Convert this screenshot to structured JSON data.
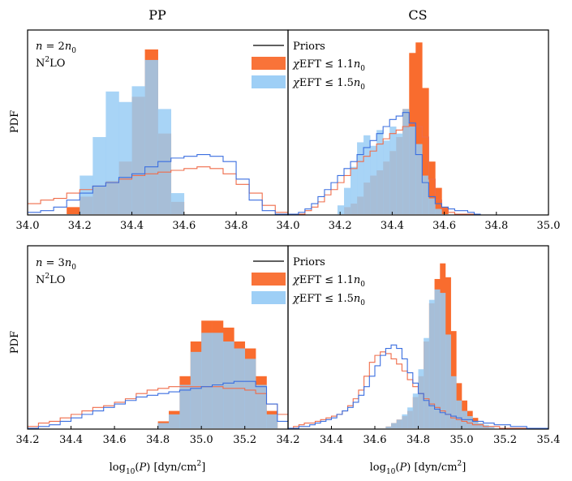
{
  "figure": {
    "column_titles": [
      "PP",
      "CS"
    ],
    "ylabel": "PDF",
    "xlabel": "log10(P) [dyn/cm2]"
  },
  "rows": [
    {
      "density": "n = 2n0",
      "order": "N2LO"
    },
    {
      "density": "n = 3n0",
      "order": "N2LO"
    }
  ],
  "legend": {
    "items": [
      {
        "label": "Priors",
        "style": "line",
        "color": "#000000"
      },
      {
        "label": "χEFT ≤ 1.1n0",
        "style": "patch",
        "color": "#f96c2e"
      },
      {
        "label": "χEFT ≤ 1.5n0",
        "style": "patch",
        "color": "#99ccf5"
      }
    ]
  },
  "colors": {
    "chiEFT_1p1_fill": "#f96c2e",
    "chiEFT_1p1_line": "#ef6c4a",
    "chiEFT_1p5_fill": "#99ccf5",
    "chiEFT_1p5_line": "#3b6fe0"
  },
  "chart_data": [
    {
      "type": "histogram",
      "title": "PP",
      "row_label": "n = 2n0",
      "xlim": [
        34.0,
        34.999
      ],
      "ylim": [
        0,
        1.0
      ],
      "xticks": [
        34.0,
        34.2,
        34.4,
        34.6,
        34.8
      ],
      "xticklabels": [
        "34.0",
        "34.2",
        "34.4",
        "34.6",
        "34.8"
      ],
      "bin_start": 34.0,
      "bin_width": 0.05,
      "series": [
        {
          "name": "χEFT ≤ 1.1n0",
          "kind": "filled",
          "color": "#f96c2e",
          "values": [
            0,
            0,
            0,
            0.04,
            0.1,
            0.16,
            0.19,
            0.3,
            0.67,
            0.94,
            0.46,
            0.07,
            0,
            0,
            0,
            0,
            0,
            0,
            0,
            0
          ]
        },
        {
          "name": "χEFT ≤ 1.5n0",
          "kind": "filled",
          "color": "#99ccf5",
          "values": [
            0,
            0,
            0,
            0,
            0.22,
            0.44,
            0.7,
            0.64,
            0.73,
            0.88,
            0.6,
            0.12,
            0,
            0,
            0,
            0,
            0,
            0,
            0,
            0
          ]
        },
        {
          "name": "Prior (1.1n0)",
          "kind": "step",
          "color": "#ef6c4a",
          "values": [
            0.06,
            0.08,
            0.09,
            0.12,
            0.14,
            0.16,
            0.18,
            0.2,
            0.22,
            0.23,
            0.24,
            0.25,
            0.26,
            0.27,
            0.26,
            0.23,
            0.17,
            0.12,
            0.05,
            0.01
          ]
        },
        {
          "name": "Prior (1.5n0)",
          "kind": "step",
          "color": "#3b6fe0",
          "values": [
            0.01,
            0.02,
            0.04,
            0.08,
            0.12,
            0.16,
            0.18,
            0.21,
            0.23,
            0.27,
            0.3,
            0.32,
            0.33,
            0.34,
            0.33,
            0.3,
            0.2,
            0.08,
            0.02,
            0
          ]
        }
      ]
    },
    {
      "type": "histogram",
      "title": "CS",
      "row_label": "n = 2n0",
      "xlim": [
        34.0,
        35.0
      ],
      "ylim": [
        0,
        1.0
      ],
      "xticks": [
        34.0,
        34.2,
        34.4,
        34.6,
        34.8,
        35.0
      ],
      "xticklabels": [
        "34.0",
        "34.2",
        "34.4",
        "34.6",
        "34.8",
        "35.0"
      ],
      "bin_start": 33.99,
      "bin_width": 0.025,
      "series": [
        {
          "name": "χEFT ≤ 1.1n0",
          "kind": "filled",
          "color": "#f96c2e",
          "values": [
            0,
            0,
            0,
            0,
            0,
            0,
            0,
            0,
            0,
            0.04,
            0.06,
            0.1,
            0.18,
            0.22,
            0.25,
            0.3,
            0.36,
            0.44,
            0.6,
            0.92,
            0.98,
            0.72,
            0.3,
            0.15,
            0.04,
            0,
            0,
            0,
            0,
            0
          ]
        },
        {
          "name": "χEFT ≤ 1.5n0",
          "kind": "filled",
          "color": "#99ccf5",
          "values": [
            0,
            0,
            0,
            0,
            0,
            0,
            0,
            0,
            0.05,
            0.15,
            0.27,
            0.41,
            0.45,
            0.39,
            0.48,
            0.42,
            0.5,
            0.46,
            0.6,
            0.5,
            0.4,
            0.22,
            0.09,
            0.03,
            0,
            0,
            0,
            0,
            0,
            0
          ]
        },
        {
          "name": "Prior (1.1n0)",
          "kind": "step",
          "color": "#ef6c4a",
          "values": [
            0,
            0,
            0,
            0.02,
            0.04,
            0.07,
            0.11,
            0.14,
            0.18,
            0.22,
            0.26,
            0.3,
            0.33,
            0.36,
            0.4,
            0.43,
            0.46,
            0.48,
            0.5,
            0.52,
            0.5,
            0.44,
            0.2,
            0.08,
            0.03,
            0.01,
            0,
            0,
            0,
            0
          ]
        },
        {
          "name": "Prior (1.5n0)",
          "kind": "step",
          "color": "#3b6fe0",
          "values": [
            0,
            0,
            0.01,
            0.03,
            0.06,
            0.1,
            0.14,
            0.18,
            0.22,
            0.26,
            0.3,
            0.34,
            0.38,
            0.42,
            0.46,
            0.5,
            0.54,
            0.56,
            0.58,
            0.52,
            0.34,
            0.18,
            0.1,
            0.06,
            0.04,
            0.03,
            0.02,
            0.02,
            0.01,
            0
          ]
        }
      ]
    },
    {
      "type": "histogram",
      "title": "PP",
      "row_label": "n = 3n0",
      "xlim": [
        34.2,
        35.399
      ],
      "ylim": [
        0,
        1.0
      ],
      "xticks": [
        34.2,
        34.4,
        34.6,
        34.8,
        35.0,
        35.2
      ],
      "xticklabels": [
        "34.2",
        "34.4",
        "34.6",
        "34.8",
        "35.0",
        "35.2"
      ],
      "bin_start": 34.2,
      "bin_width": 0.05,
      "series": [
        {
          "name": "χEFT ≤ 1.1n0",
          "kind": "filled",
          "color": "#f96c2e",
          "values": [
            0,
            0,
            0,
            0,
            0,
            0,
            0,
            0,
            0,
            0,
            0,
            0,
            0.04,
            0.1,
            0.3,
            0.5,
            0.62,
            0.62,
            0.58,
            0.5,
            0.46,
            0.3,
            0.1,
            0,
            0
          ]
        },
        {
          "name": "χEFT ≤ 1.5n0",
          "kind": "filled",
          "color": "#99ccf5",
          "values": [
            0,
            0,
            0,
            0,
            0,
            0,
            0,
            0,
            0,
            0,
            0,
            0,
            0.03,
            0.08,
            0.25,
            0.44,
            0.55,
            0.55,
            0.5,
            0.46,
            0.4,
            0.25,
            0.08,
            0,
            0
          ]
        },
        {
          "name": "Prior (1.1n0)",
          "kind": "step",
          "color": "#ef6c4a",
          "values": [
            0.01,
            0.03,
            0.04,
            0.06,
            0.08,
            0.1,
            0.12,
            0.13,
            0.15,
            0.17,
            0.2,
            0.22,
            0.23,
            0.24,
            0.24,
            0.24,
            0.24,
            0.24,
            0.23,
            0.23,
            0.22,
            0.2,
            0.14,
            0.08,
            0.02
          ]
        },
        {
          "name": "Prior (1.5n0)",
          "kind": "step",
          "color": "#3b6fe0",
          "values": [
            0,
            0.01,
            0.02,
            0.04,
            0.06,
            0.08,
            0.1,
            0.12,
            0.14,
            0.16,
            0.18,
            0.19,
            0.2,
            0.21,
            0.22,
            0.23,
            0.24,
            0.25,
            0.26,
            0.27,
            0.27,
            0.24,
            0.14,
            0.04,
            0
          ]
        }
      ]
    },
    {
      "type": "histogram",
      "title": "CS",
      "row_label": "n = 3n0",
      "xlim": [
        34.2,
        35.4
      ],
      "ylim": [
        0,
        1.0
      ],
      "xticks": [
        34.2,
        34.4,
        34.6,
        34.8,
        35.0,
        35.2,
        35.4
      ],
      "xticklabels": [
        "34.2",
        "34.4",
        "34.6",
        "34.8",
        "35.0",
        "35.2",
        "35.4"
      ],
      "bin_start": 34.2,
      "bin_width": 0.025,
      "series": [
        {
          "name": "χEFT ≤ 1.1n0",
          "kind": "filled",
          "color": "#f96c2e",
          "values": [
            0,
            0,
            0,
            0,
            0,
            0,
            0,
            0,
            0,
            0,
            0,
            0,
            0,
            0,
            0,
            0,
            0,
            0,
            0.01,
            0.03,
            0.05,
            0.07,
            0.1,
            0.18,
            0.3,
            0.5,
            0.72,
            0.86,
            0.95,
            0.87,
            0.56,
            0.26,
            0.16,
            0.1,
            0.06,
            0.03,
            0.01,
            0,
            0,
            0,
            0,
            0,
            0,
            0,
            0,
            0,
            0,
            0
          ]
        },
        {
          "name": "χEFT ≤ 1.5n0",
          "kind": "filled",
          "color": "#99ccf5",
          "values": [
            0,
            0,
            0,
            0,
            0,
            0,
            0,
            0,
            0,
            0,
            0,
            0,
            0,
            0,
            0,
            0,
            0,
            0,
            0.01,
            0.03,
            0.05,
            0.08,
            0.12,
            0.2,
            0.34,
            0.52,
            0.74,
            0.8,
            0.78,
            0.54,
            0.3,
            0.16,
            0.1,
            0.07,
            0.04,
            0.03,
            0.02,
            0.01,
            0,
            0,
            0,
            0,
            0,
            0,
            0,
            0,
            0,
            0
          ]
        },
        {
          "name": "Prior (1.1n0)",
          "kind": "step",
          "color": "#ef6c4a",
          "values": [
            0,
            0.01,
            0.02,
            0.03,
            0.03,
            0.04,
            0.05,
            0.06,
            0.07,
            0.08,
            0.1,
            0.13,
            0.17,
            0.22,
            0.3,
            0.38,
            0.42,
            0.44,
            0.43,
            0.4,
            0.37,
            0.33,
            0.28,
            0.24,
            0.2,
            0.17,
            0.14,
            0.12,
            0.1,
            0.08,
            0.06,
            0.05,
            0.04,
            0.03,
            0.02,
            0.02,
            0.01,
            0.01,
            0.01,
            0,
            0,
            0,
            0,
            0,
            0,
            0,
            0,
            0
          ]
        },
        {
          "name": "Prior (1.5n0)",
          "kind": "step",
          "color": "#3b6fe0",
          "values": [
            0,
            0,
            0.01,
            0.01,
            0.02,
            0.03,
            0.04,
            0.05,
            0.06,
            0.08,
            0.1,
            0.12,
            0.15,
            0.19,
            0.24,
            0.3,
            0.36,
            0.42,
            0.46,
            0.48,
            0.46,
            0.4,
            0.32,
            0.26,
            0.2,
            0.16,
            0.13,
            0.11,
            0.09,
            0.08,
            0.07,
            0.06,
            0.05,
            0.05,
            0.04,
            0.04,
            0.03,
            0.03,
            0.02,
            0.02,
            0.02,
            0.01,
            0.01,
            0.01,
            0,
            0,
            0,
            0
          ]
        }
      ]
    }
  ]
}
